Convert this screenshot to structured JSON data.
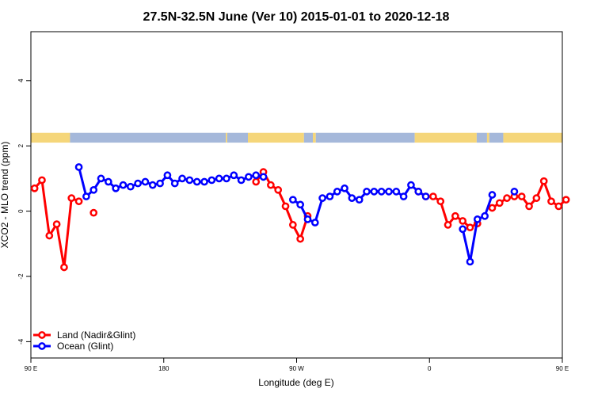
{
  "chart_data": {
    "type": "line",
    "title": "27.5N-32.5N June (Ver 10)   2015-01-01 to 2020-12-18",
    "xlabel": "Longitude (deg E)",
    "ylabel": "XCO2 - MLO trend (ppm)",
    "xlim": [
      90,
      450
    ],
    "ylim": [
      -4.5,
      5.5
    ],
    "x_ticks": [
      {
        "value": 90,
        "label": "90 E"
      },
      {
        "value": 180,
        "label": "180"
      },
      {
        "value": 270,
        "label": "90 W"
      },
      {
        "value": 360,
        "label": "0"
      },
      {
        "value": 450,
        "label": "90 E"
      },
      {
        "value": 540,
        "label": "180"
      }
    ],
    "y_ticks": [
      {
        "value": -4,
        "label": "-4"
      },
      {
        "value": -2,
        "label": "-2"
      },
      {
        "value": 0,
        "label": "0"
      },
      {
        "value": 2,
        "label": "2"
      },
      {
        "value": 4,
        "label": "4"
      }
    ],
    "surface_strip": {
      "y_range": [
        2.1,
        2.4
      ],
      "segments": [
        {
          "type": "land",
          "x": [
            90,
            116.5
          ]
        },
        {
          "type": "ocean",
          "x": [
            116.5,
            222
          ]
        },
        {
          "type": "land",
          "x": [
            222,
            223
          ]
        },
        {
          "type": "ocean",
          "x": [
            223,
            237
          ]
        },
        {
          "type": "land",
          "x": [
            237,
            275
          ]
        },
        {
          "type": "ocean",
          "x": [
            275,
            281
          ]
        },
        {
          "type": "land",
          "x": [
            281,
            283
          ]
        },
        {
          "type": "ocean",
          "x": [
            283,
            350
          ]
        },
        {
          "type": "land",
          "x": [
            350,
            392
          ]
        },
        {
          "type": "ocean",
          "x": [
            392,
            399
          ]
        },
        {
          "type": "land",
          "x": [
            399,
            400.5
          ]
        },
        {
          "type": "ocean",
          "x": [
            400.5,
            410
          ]
        },
        {
          "type": "land",
          "x": [
            410,
            451.5
          ]
        },
        {
          "type": "ocean",
          "x": [
            451.5,
            456.5
          ]
        },
        {
          "type": "land",
          "x": [
            456.5,
            540
          ]
        }
      ]
    },
    "series": [
      {
        "name": "Land (Nadir&Glint)",
        "color": "#ff0000",
        "segments": [
          [
            [
              92.5,
              0.7
            ],
            [
              97.5,
              0.95
            ],
            [
              102.5,
              -0.75
            ],
            [
              107.5,
              -0.4
            ],
            [
              112.5,
              -1.72
            ],
            [
              117.5,
              0.4
            ],
            [
              122.5,
              0.3
            ]
          ],
          [
            [
              132.5,
              -0.05
            ]
          ],
          [
            [
              242.5,
              0.9
            ],
            [
              247.5,
              1.2
            ],
            [
              252.5,
              0.8
            ],
            [
              257.5,
              0.65
            ],
            [
              262.5,
              0.15
            ],
            [
              267.5,
              -0.42
            ],
            [
              272.5,
              -0.85
            ],
            [
              277.5,
              -0.15
            ]
          ],
          [
            [
              352.5,
              0.6
            ],
            [
              357.5,
              0.45
            ],
            [
              362.5,
              0.45
            ],
            [
              367.5,
              0.3
            ],
            [
              372.5,
              -0.42
            ],
            [
              377.5,
              -0.15
            ],
            [
              382.5,
              -0.3
            ],
            [
              387.5,
              -0.5
            ],
            [
              392.5,
              -0.38
            ]
          ],
          [
            [
              402.5,
              0.1
            ],
            [
              407.5,
              0.25
            ],
            [
              412.5,
              0.4
            ],
            [
              417.5,
              0.45
            ],
            [
              422.5,
              0.45
            ],
            [
              427.5,
              0.15
            ],
            [
              432.5,
              0.4
            ],
            [
              437.5,
              0.92
            ],
            [
              442.5,
              0.3
            ],
            [
              447.5,
              0.15
            ],
            [
              452.5,
              0.35
            ]
          ]
        ]
      },
      {
        "name": "Ocean (Glint)",
        "color": "#0000ff",
        "segments": [
          [
            [
              122.5,
              1.35
            ],
            [
              127.5,
              0.45
            ],
            [
              132.5,
              0.65
            ],
            [
              137.5,
              1.0
            ],
            [
              142.5,
              0.9
            ],
            [
              147.5,
              0.7
            ],
            [
              152.5,
              0.8
            ],
            [
              157.5,
              0.75
            ],
            [
              162.5,
              0.85
            ],
            [
              167.5,
              0.9
            ],
            [
              172.5,
              0.8
            ],
            [
              177.5,
              0.85
            ],
            [
              182.5,
              1.1
            ],
            [
              187.5,
              0.85
            ],
            [
              192.5,
              1.0
            ],
            [
              197.5,
              0.95
            ],
            [
              202.5,
              0.9
            ],
            [
              207.5,
              0.9
            ],
            [
              212.5,
              0.95
            ],
            [
              217.5,
              1.0
            ],
            [
              222.5,
              1.0
            ],
            [
              227.5,
              1.1
            ],
            [
              232.5,
              0.95
            ],
            [
              237.5,
              1.05
            ],
            [
              242.5,
              1.1
            ],
            [
              247.5,
              1.05
            ]
          ],
          [
            [
              267.5,
              0.35
            ],
            [
              272.5,
              0.2
            ],
            [
              277.5,
              -0.25
            ],
            [
              282.5,
              -0.35
            ],
            [
              287.5,
              0.4
            ],
            [
              292.5,
              0.45
            ],
            [
              297.5,
              0.6
            ],
            [
              302.5,
              0.7
            ],
            [
              307.5,
              0.4
            ],
            [
              312.5,
              0.35
            ],
            [
              317.5,
              0.6
            ],
            [
              322.5,
              0.6
            ],
            [
              327.5,
              0.6
            ],
            [
              332.5,
              0.6
            ],
            [
              337.5,
              0.6
            ],
            [
              342.5,
              0.45
            ],
            [
              347.5,
              0.8
            ],
            [
              352.5,
              0.6
            ],
            [
              357.5,
              0.45
            ]
          ],
          [
            [
              382.5,
              -0.55
            ],
            [
              387.5,
              -1.55
            ],
            [
              392.5,
              -0.25
            ],
            [
              397.5,
              -0.15
            ],
            [
              402.5,
              0.5
            ]
          ],
          [
            [
              417.5,
              0.6
            ]
          ]
        ]
      }
    ],
    "legend": {
      "placement": "bottom-left",
      "entries": [
        "Land (Nadir&Glint)",
        "Ocean (Glint)"
      ]
    }
  }
}
